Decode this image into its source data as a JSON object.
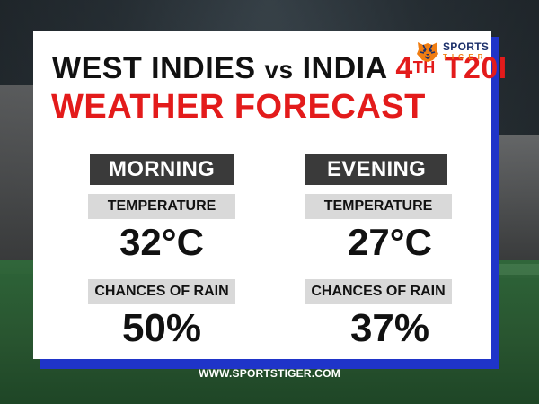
{
  "title": {
    "matchup": "WEST INDIES",
    "vs": "vs",
    "team2": "INDIA",
    "match_num": "4",
    "match_sup": "TH",
    "match_type": "T20I",
    "subtitle": "WEATHER FORECAST"
  },
  "logo": {
    "line1": "SPORTS",
    "line2": "TIGER",
    "icon": "tiger-head-icon"
  },
  "morning": {
    "header": "MORNING",
    "temp_label": "TEMPERATURE",
    "temp_value": "32°C",
    "rain_label": "CHANCES OF RAIN",
    "rain_value": "50%"
  },
  "evening": {
    "header": "EVENING",
    "temp_label": "TEMPERATURE",
    "temp_value": "27°C",
    "rain_label": "CHANCES OF RAIN",
    "rain_value": "37%"
  },
  "footer": {
    "url": "WWW.SPORTSTIGER.COM"
  },
  "colors": {
    "accent_red": "#e31b1b",
    "shadow_blue": "#1f34c9",
    "header_dark": "#3a3a3a",
    "label_gray": "#d9d9d9",
    "brand_navy": "#1b2f6a",
    "brand_orange": "#f07d12"
  }
}
